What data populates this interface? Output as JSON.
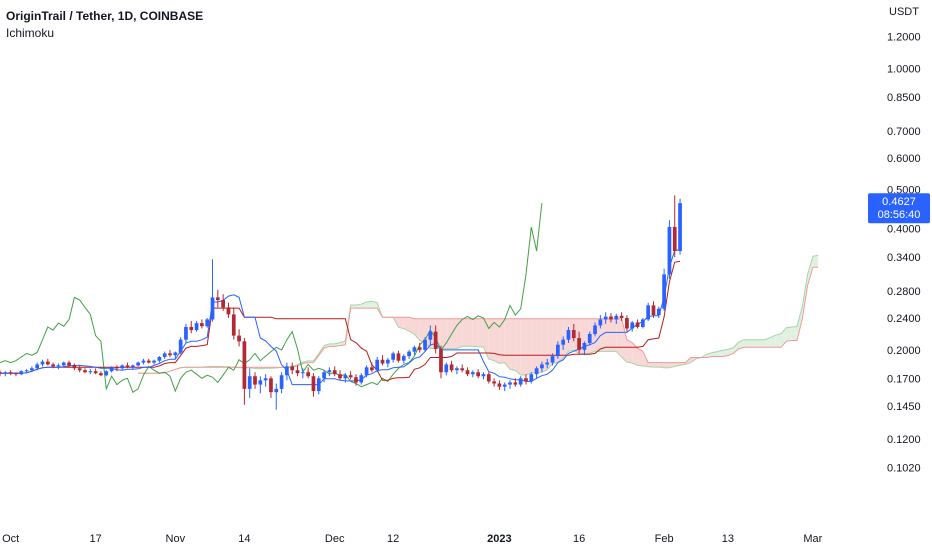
{
  "header": {
    "symbol_line": "OriginTrail / Tether, 1D, COINBASE",
    "indicator": "Ichimoku"
  },
  "chart_data": {
    "type": "candlestick",
    "title": "OriginTrail / Tether, 1D, COINBASE",
    "y_axis_unit": "USDT",
    "y_scale": "log",
    "ylim": [
      0.095,
      1.32
    ],
    "y_ticks": [
      "1.2000",
      "1.0000",
      "0.8500",
      "0.7000",
      "0.6000",
      "0.5000",
      "0.4000",
      "0.3400",
      "0.2800",
      "0.2400",
      "0.2000",
      "0.1700",
      "0.1450",
      "0.1200",
      "0.1020"
    ],
    "x_ticks": [
      {
        "label": "Oct",
        "date": "2022-10-01"
      },
      {
        "label": "17",
        "date": "2022-10-17"
      },
      {
        "label": "Nov",
        "date": "2022-11-01"
      },
      {
        "label": "14",
        "date": "2022-11-14"
      },
      {
        "label": "Dec",
        "date": "2022-12-01"
      },
      {
        "label": "12",
        "date": "2022-12-12"
      },
      {
        "label": "2023",
        "date": "2023-01-01"
      },
      {
        "label": "16",
        "date": "2023-01-16"
      },
      {
        "label": "Feb",
        "date": "2023-02-01"
      },
      {
        "label": "13",
        "date": "2023-02-13"
      },
      {
        "label": "Mar",
        "date": "2023-03-01"
      }
    ],
    "x_range": [
      "2022-09-29",
      "2023-03-11"
    ],
    "current_price": "0.4627",
    "countdown": "08:56:40",
    "colors": {
      "up": "#2962ff",
      "down": "#b22833",
      "conversion_line": "#2962ff",
      "base_line": "#b71c1c",
      "lagging_span": "#43a047",
      "cloud_bearish": "#f8d7d7",
      "cloud_bullish": "#e1f1e1",
      "span_a": "#a5d6a7",
      "span_b": "#ef9a9a",
      "price_label": "#2962ff"
    },
    "candles_ohlc": [
      [
        0.176,
        0.178,
        0.172,
        0.175
      ],
      [
        0.175,
        0.177,
        0.172,
        0.176
      ],
      [
        0.176,
        0.178,
        0.173,
        0.175
      ],
      [
        0.175,
        0.176,
        0.172,
        0.174
      ],
      [
        0.174,
        0.178,
        0.173,
        0.177
      ],
      [
        0.177,
        0.179,
        0.175,
        0.178
      ],
      [
        0.178,
        0.182,
        0.176,
        0.18
      ],
      [
        0.18,
        0.186,
        0.178,
        0.184
      ],
      [
        0.184,
        0.189,
        0.182,
        0.187
      ],
      [
        0.187,
        0.19,
        0.183,
        0.184
      ],
      [
        0.184,
        0.186,
        0.18,
        0.182
      ],
      [
        0.182,
        0.185,
        0.179,
        0.183
      ],
      [
        0.183,
        0.187,
        0.181,
        0.186
      ],
      [
        0.186,
        0.188,
        0.181,
        0.183
      ],
      [
        0.183,
        0.185,
        0.178,
        0.18
      ],
      [
        0.18,
        0.183,
        0.176,
        0.178
      ],
      [
        0.178,
        0.18,
        0.175,
        0.176
      ],
      [
        0.176,
        0.179,
        0.174,
        0.177
      ],
      [
        0.177,
        0.18,
        0.174,
        0.175
      ],
      [
        0.175,
        0.177,
        0.172,
        0.173
      ],
      [
        0.173,
        0.178,
        0.172,
        0.177
      ],
      [
        0.177,
        0.182,
        0.176,
        0.181
      ],
      [
        0.181,
        0.183,
        0.177,
        0.18
      ],
      [
        0.18,
        0.184,
        0.178,
        0.183
      ],
      [
        0.183,
        0.186,
        0.18,
        0.181
      ],
      [
        0.181,
        0.184,
        0.179,
        0.183
      ],
      [
        0.183,
        0.187,
        0.182,
        0.186
      ],
      [
        0.186,
        0.19,
        0.184,
        0.188
      ],
      [
        0.188,
        0.19,
        0.185,
        0.186
      ],
      [
        0.186,
        0.189,
        0.184,
        0.188
      ],
      [
        0.188,
        0.193,
        0.186,
        0.192
      ],
      [
        0.192,
        0.198,
        0.19,
        0.196
      ],
      [
        0.196,
        0.2,
        0.192,
        0.194
      ],
      [
        0.194,
        0.198,
        0.19,
        0.197
      ],
      [
        0.197,
        0.215,
        0.195,
        0.212
      ],
      [
        0.212,
        0.232,
        0.208,
        0.228
      ],
      [
        0.228,
        0.236,
        0.22,
        0.224
      ],
      [
        0.224,
        0.236,
        0.222,
        0.233
      ],
      [
        0.233,
        0.238,
        0.226,
        0.229
      ],
      [
        0.229,
        0.24,
        0.227,
        0.238
      ],
      [
        0.238,
        0.336,
        0.235,
        0.27
      ],
      [
        0.27,
        0.282,
        0.255,
        0.266
      ],
      [
        0.266,
        0.275,
        0.25,
        0.255
      ],
      [
        0.255,
        0.262,
        0.24,
        0.245
      ],
      [
        0.245,
        0.255,
        0.212,
        0.217
      ],
      [
        0.217,
        0.225,
        0.204,
        0.21
      ],
      [
        0.21,
        0.214,
        0.146,
        0.16
      ],
      [
        0.16,
        0.18,
        0.152,
        0.172
      ],
      [
        0.172,
        0.176,
        0.16,
        0.164
      ],
      [
        0.164,
        0.172,
        0.156,
        0.168
      ],
      [
        0.168,
        0.174,
        0.162,
        0.17
      ],
      [
        0.17,
        0.172,
        0.152,
        0.157
      ],
      [
        0.157,
        0.165,
        0.142,
        0.16
      ],
      [
        0.16,
        0.176,
        0.156,
        0.173
      ],
      [
        0.173,
        0.186,
        0.168,
        0.182
      ],
      [
        0.182,
        0.186,
        0.174,
        0.178
      ],
      [
        0.178,
        0.183,
        0.172,
        0.175
      ],
      [
        0.175,
        0.18,
        0.17,
        0.176
      ],
      [
        0.176,
        0.181,
        0.17,
        0.172
      ],
      [
        0.172,
        0.175,
        0.153,
        0.158
      ],
      [
        0.158,
        0.172,
        0.155,
        0.17
      ],
      [
        0.17,
        0.178,
        0.166,
        0.176
      ],
      [
        0.176,
        0.181,
        0.172,
        0.178
      ],
      [
        0.178,
        0.182,
        0.172,
        0.174
      ],
      [
        0.174,
        0.178,
        0.168,
        0.17
      ],
      [
        0.17,
        0.175,
        0.166,
        0.173
      ],
      [
        0.173,
        0.177,
        0.169,
        0.171
      ],
      [
        0.171,
        0.174,
        0.163,
        0.166
      ],
      [
        0.166,
        0.175,
        0.164,
        0.173
      ],
      [
        0.173,
        0.183,
        0.171,
        0.181
      ],
      [
        0.181,
        0.186,
        0.176,
        0.178
      ],
      [
        0.178,
        0.192,
        0.176,
        0.189
      ],
      [
        0.189,
        0.194,
        0.183,
        0.185
      ],
      [
        0.185,
        0.191,
        0.181,
        0.189
      ],
      [
        0.189,
        0.198,
        0.186,
        0.196
      ],
      [
        0.196,
        0.199,
        0.186,
        0.188
      ],
      [
        0.188,
        0.195,
        0.185,
        0.193
      ],
      [
        0.193,
        0.2,
        0.19,
        0.198
      ],
      [
        0.198,
        0.205,
        0.194,
        0.203
      ],
      [
        0.203,
        0.208,
        0.197,
        0.2
      ],
      [
        0.2,
        0.215,
        0.198,
        0.212
      ],
      [
        0.212,
        0.23,
        0.205,
        0.222
      ],
      [
        0.222,
        0.23,
        0.196,
        0.201
      ],
      [
        0.201,
        0.205,
        0.17,
        0.176
      ],
      [
        0.176,
        0.186,
        0.173,
        0.184
      ],
      [
        0.184,
        0.188,
        0.176,
        0.178
      ],
      [
        0.178,
        0.182,
        0.174,
        0.18
      ],
      [
        0.18,
        0.184,
        0.176,
        0.178
      ],
      [
        0.178,
        0.181,
        0.172,
        0.174
      ],
      [
        0.174,
        0.178,
        0.171,
        0.176
      ],
      [
        0.176,
        0.179,
        0.17,
        0.172
      ],
      [
        0.172,
        0.176,
        0.169,
        0.174
      ],
      [
        0.174,
        0.176,
        0.165,
        0.167
      ],
      [
        0.167,
        0.17,
        0.162,
        0.165
      ],
      [
        0.165,
        0.168,
        0.159,
        0.162
      ],
      [
        0.162,
        0.166,
        0.158,
        0.164
      ],
      [
        0.164,
        0.168,
        0.16,
        0.166
      ],
      [
        0.166,
        0.17,
        0.162,
        0.164
      ],
      [
        0.164,
        0.172,
        0.162,
        0.17
      ],
      [
        0.17,
        0.174,
        0.164,
        0.167
      ],
      [
        0.167,
        0.176,
        0.165,
        0.174
      ],
      [
        0.174,
        0.182,
        0.17,
        0.18
      ],
      [
        0.18,
        0.187,
        0.176,
        0.184
      ],
      [
        0.184,
        0.19,
        0.18,
        0.186
      ],
      [
        0.186,
        0.196,
        0.183,
        0.193
      ],
      [
        0.193,
        0.21,
        0.19,
        0.206
      ],
      [
        0.206,
        0.216,
        0.2,
        0.212
      ],
      [
        0.212,
        0.228,
        0.208,
        0.224
      ],
      [
        0.224,
        0.232,
        0.21,
        0.214
      ],
      [
        0.214,
        0.222,
        0.196,
        0.2
      ],
      [
        0.2,
        0.21,
        0.194,
        0.208
      ],
      [
        0.208,
        0.222,
        0.205,
        0.219
      ],
      [
        0.219,
        0.234,
        0.216,
        0.23
      ],
      [
        0.23,
        0.244,
        0.226,
        0.238
      ],
      [
        0.238,
        0.248,
        0.232,
        0.242
      ],
      [
        0.242,
        0.247,
        0.234,
        0.238
      ],
      [
        0.238,
        0.246,
        0.232,
        0.243
      ],
      [
        0.243,
        0.248,
        0.236,
        0.24
      ],
      [
        0.24,
        0.244,
        0.222,
        0.226
      ],
      [
        0.226,
        0.236,
        0.222,
        0.234
      ],
      [
        0.234,
        0.238,
        0.226,
        0.228
      ],
      [
        0.228,
        0.24,
        0.226,
        0.238
      ],
      [
        0.238,
        0.262,
        0.236,
        0.258
      ],
      [
        0.258,
        0.264,
        0.24,
        0.244
      ],
      [
        0.244,
        0.256,
        0.24,
        0.253
      ],
      [
        0.253,
        0.318,
        0.25,
        0.308
      ],
      [
        0.308,
        0.42,
        0.3,
        0.404
      ],
      [
        0.404,
        0.484,
        0.34,
        0.352
      ],
      [
        0.352,
        0.475,
        0.345,
        0.463
      ]
    ]
  }
}
